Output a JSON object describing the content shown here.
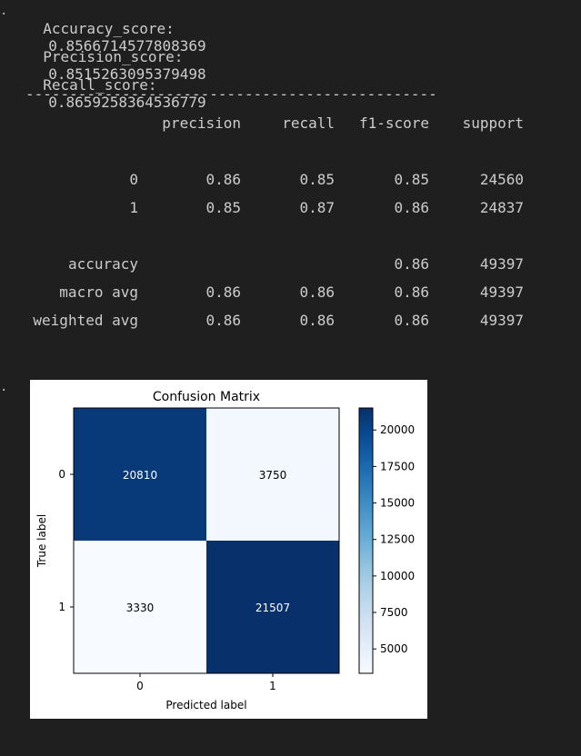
{
  "output": {
    "prompt_marker": "."
  },
  "metrics": [
    {
      "label": "Accuracy_score:",
      "value": "0.8566714577808369"
    },
    {
      "label": "Precision_score:",
      "value": "0.8515263095379498"
    },
    {
      "label": "Recall_score:",
      "value": "0.8659258364536779"
    }
  ],
  "separator": "-----------------------------------------------",
  "report": {
    "headers": [
      "precision",
      "recall",
      "f1-score",
      "support"
    ],
    "rows": [
      {
        "label": "0",
        "precision": "0.86",
        "recall": "0.85",
        "f1": "0.85",
        "support": "24560"
      },
      {
        "label": "1",
        "precision": "0.85",
        "recall": "0.87",
        "f1": "0.86",
        "support": "24837"
      },
      {
        "label": "accuracy",
        "precision": "",
        "recall": "",
        "f1": "0.86",
        "support": "49397"
      },
      {
        "label": "macro avg",
        "precision": "0.86",
        "recall": "0.86",
        "f1": "0.86",
        "support": "49397"
      },
      {
        "label": "weighted avg",
        "precision": "0.86",
        "recall": "0.86",
        "f1": "0.86",
        "support": "49397"
      }
    ]
  },
  "chart_data": {
    "type": "heatmap",
    "title": "Confusion Matrix",
    "xlabel": "Predicted label",
    "ylabel": "True label",
    "x_categories": [
      "0",
      "1"
    ],
    "y_categories": [
      "0",
      "1"
    ],
    "values": [
      [
        20810,
        3750
      ],
      [
        3330,
        21507
      ]
    ],
    "colormap": "Blues",
    "colorbar": {
      "range": [
        3330,
        21507
      ],
      "ticks": [
        5000,
        7500,
        10000,
        12500,
        15000,
        17500,
        20000
      ],
      "tick_labels": [
        "5000",
        "7500",
        "10000",
        "12500",
        "15000",
        "17500",
        "20000"
      ]
    },
    "colors": {
      "low": "#f7fbff",
      "high": "#08306b",
      "cell_text_dark": "#ffffff",
      "cell_text_light": "#000000"
    }
  }
}
